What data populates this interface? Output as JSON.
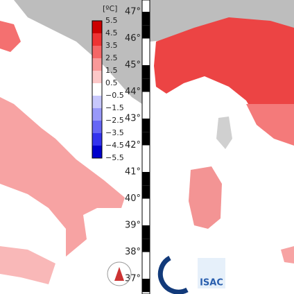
{
  "map": {
    "colorbar": {
      "unit": "[ºC]",
      "labels": [
        "5.5",
        "4.5",
        "3.5",
        "2.5",
        "1.5",
        "0.5",
        "−0.5",
        "−1.5",
        "−2.5",
        "−3.5",
        "−4.5",
        "−5.5"
      ],
      "colors": [
        "#cc0000",
        "#ee3333",
        "#f56666",
        "#f99999",
        "#fcc8c8",
        "#ffffff",
        "#c8c8fc",
        "#9999f9",
        "#6666f5",
        "#3333ee",
        "#0000cc"
      ]
    },
    "latitudes": [
      "47°",
      "46°",
      "45°",
      "44°",
      "43°",
      "42°",
      "41°",
      "40°",
      "39°",
      "38°",
      "37°"
    ],
    "logo": "ISAC"
  }
}
